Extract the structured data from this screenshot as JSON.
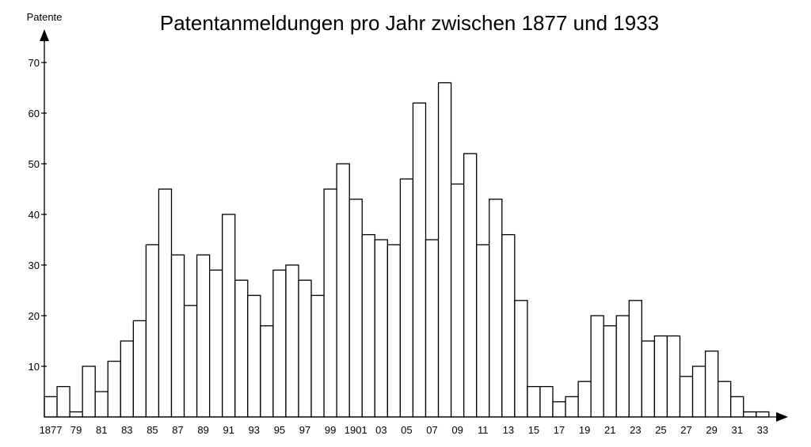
{
  "chart_data": {
    "type": "bar",
    "title": "Patentanmeldungen pro Jahr zwischen 1877 und 1933",
    "ylabel": "Patente",
    "xlabel": "",
    "ylim": [
      0,
      70
    ],
    "yticks": [
      10,
      20,
      30,
      40,
      50,
      60,
      70
    ],
    "x_tick_labels": [
      "1877",
      "79",
      "81",
      "83",
      "85",
      "87",
      "89",
      "91",
      "93",
      "95",
      "97",
      "99",
      "1901",
      "03",
      "05",
      "07",
      "09",
      "11",
      "13",
      "15",
      "17",
      "19",
      "21",
      "23",
      "25",
      "27",
      "29",
      "31",
      "33"
    ],
    "categories": [
      1877,
      1878,
      1879,
      1880,
      1881,
      1882,
      1883,
      1884,
      1885,
      1886,
      1887,
      1888,
      1889,
      1890,
      1891,
      1892,
      1893,
      1894,
      1895,
      1896,
      1897,
      1898,
      1899,
      1900,
      1901,
      1902,
      1903,
      1904,
      1905,
      1906,
      1907,
      1908,
      1909,
      1910,
      1911,
      1912,
      1913,
      1914,
      1915,
      1916,
      1917,
      1918,
      1919,
      1920,
      1921,
      1922,
      1923,
      1924,
      1925,
      1926,
      1927,
      1928,
      1929,
      1930,
      1931,
      1932,
      1933
    ],
    "values": [
      4,
      6,
      1,
      10,
      5,
      11,
      15,
      19,
      34,
      45,
      32,
      22,
      32,
      29,
      40,
      27,
      24,
      18,
      29,
      30,
      27,
      24,
      45,
      50,
      43,
      36,
      35,
      34,
      47,
      62,
      35,
      66,
      46,
      52,
      34,
      43,
      36,
      23,
      6,
      6,
      3,
      4,
      7,
      20,
      18,
      20,
      23,
      15,
      16,
      16,
      8,
      10,
      13,
      7,
      4,
      1,
      1
    ],
    "grid": false,
    "legend": "none",
    "colors": {
      "bar_fill": "#ffffff",
      "bar_stroke": "#000000"
    }
  }
}
